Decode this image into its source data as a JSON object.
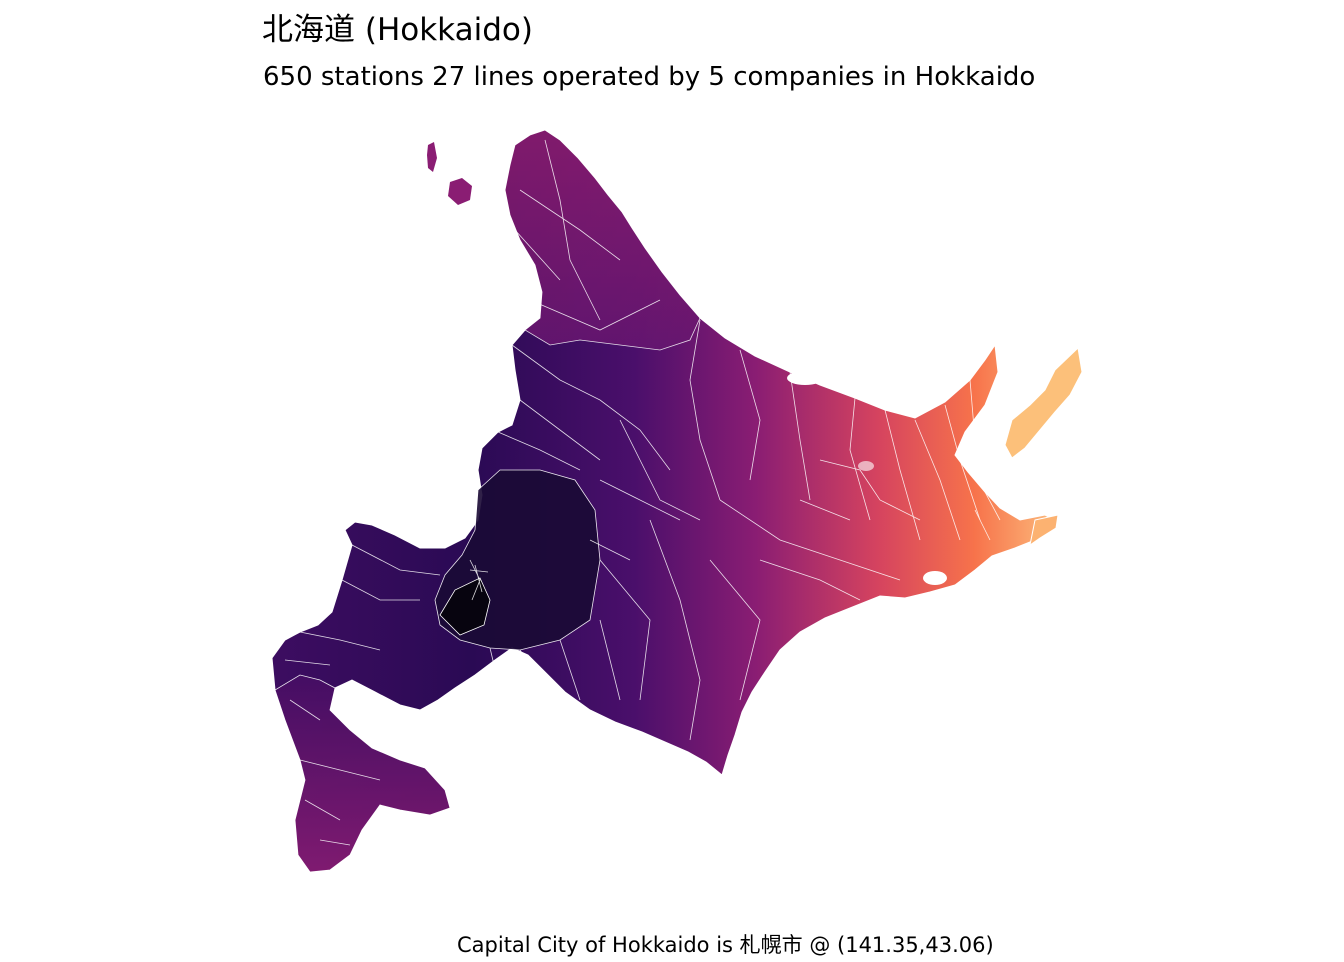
{
  "title": "北海道 (Hokkaido)",
  "subtitle": "650 stations 27  lines operated by 5 companies in Hokkaido",
  "caption": "Capital City of Hokkaido is 札幌市 @ (141.35,43.06)",
  "map": {
    "region": "Hokkaido",
    "fill_palette": [
      "#0b0723",
      "#2a0a54",
      "#5a1470",
      "#8a1d73",
      "#b8296a",
      "#e0515a",
      "#f7734b",
      "#fcb271",
      "#fdd08a"
    ],
    "border_color": "#ffffff",
    "stations": 650,
    "lines": 27,
    "companies": 5
  }
}
